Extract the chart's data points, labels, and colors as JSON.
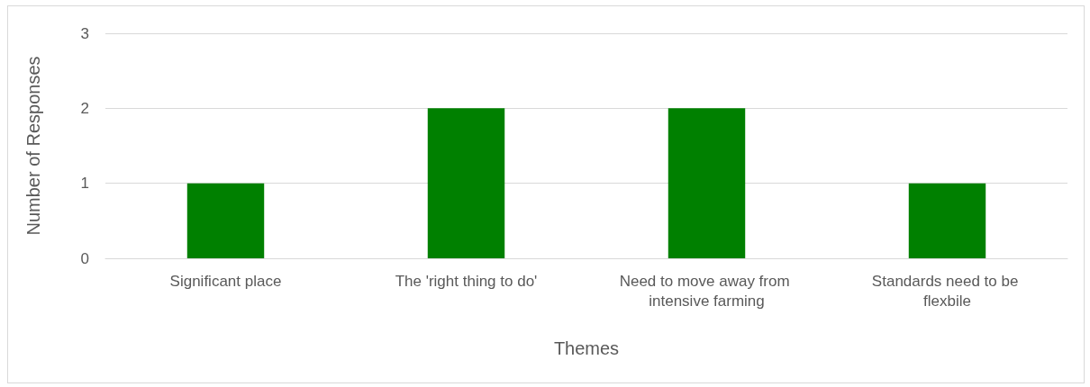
{
  "chart_data": {
    "type": "bar",
    "xlabel": "Themes",
    "ylabel": "Number of Responses",
    "categories": [
      "Significant place",
      "The 'right thing to do'",
      "Need to move away from intensive farming",
      "Standards need to be flexbile"
    ],
    "values": [
      1,
      2,
      2,
      1
    ],
    "color": "#008000",
    "ylim": [
      0,
      3
    ],
    "yticks": [
      0,
      1,
      2,
      3
    ],
    "grid": "y"
  }
}
